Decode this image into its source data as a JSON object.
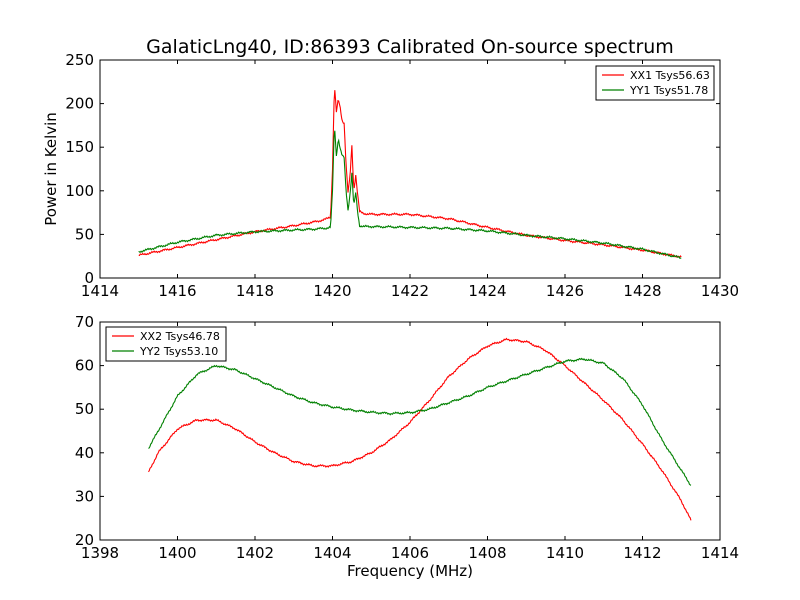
{
  "figure": {
    "title": "GalaticLng40, ID:86393 Calibrated On-source spectrum"
  },
  "chart_data": [
    {
      "type": "line",
      "xlabel": "",
      "ylabel": "Power in Kelvin",
      "xlim": [
        1414,
        1430
      ],
      "ylim": [
        0,
        250
      ],
      "xticks": [
        1414,
        1416,
        1418,
        1420,
        1422,
        1424,
        1426,
        1428,
        1430
      ],
      "yticks": [
        0,
        50,
        100,
        150,
        200,
        250
      ],
      "legend_position": "top-right",
      "grid": false,
      "series": [
        {
          "name": "XX1 Tsys56.63",
          "color": "#ff0000",
          "x": [
            1415.0,
            1416.0,
            1417.0,
            1418.0,
            1419.0,
            1419.5,
            1419.8,
            1419.95,
            1420.0,
            1420.05,
            1420.1,
            1420.15,
            1420.2,
            1420.25,
            1420.3,
            1420.35,
            1420.4,
            1420.45,
            1420.5,
            1420.55,
            1420.6,
            1420.65,
            1420.7,
            1420.8,
            1421.0,
            1422.0,
            1423.0,
            1424.0,
            1425.0,
            1426.0,
            1427.0,
            1428.0,
            1429.0
          ],
          "y": [
            26,
            35,
            44,
            53,
            60,
            64,
            67,
            70,
            125,
            222,
            190,
            205,
            195,
            180,
            178,
            130,
            98,
            115,
            152,
            100,
            118,
            95,
            76,
            74,
            73,
            73,
            68,
            58,
            49,
            43,
            38,
            32,
            24
          ]
        },
        {
          "name": "YY1 Tsys51.78",
          "color": "#008000",
          "x": [
            1415.0,
            1416.0,
            1417.0,
            1418.0,
            1419.0,
            1419.5,
            1419.8,
            1419.95,
            1420.0,
            1420.05,
            1420.1,
            1420.15,
            1420.2,
            1420.25,
            1420.3,
            1420.35,
            1420.4,
            1420.45,
            1420.5,
            1420.55,
            1420.6,
            1420.65,
            1420.7,
            1420.8,
            1421.0,
            1422.0,
            1423.0,
            1424.0,
            1425.0,
            1426.0,
            1427.0,
            1428.0,
            1429.0
          ],
          "y": [
            30,
            41,
            49,
            53,
            55,
            56,
            57,
            58,
            100,
            177,
            140,
            160,
            148,
            140,
            138,
            100,
            78,
            95,
            120,
            82,
            98,
            75,
            60,
            59,
            59,
            58,
            57,
            54,
            49,
            45,
            40,
            33,
            23
          ]
        }
      ]
    },
    {
      "type": "line",
      "xlabel": "Frequency (MHz)",
      "ylabel": "",
      "xlim": [
        1398,
        1414
      ],
      "ylim": [
        20,
        70
      ],
      "xticks": [
        1398,
        1400,
        1402,
        1404,
        1406,
        1408,
        1410,
        1412,
        1414
      ],
      "yticks": [
        20,
        30,
        40,
        50,
        60,
        70
      ],
      "legend_position": "top-left",
      "grid": false,
      "series": [
        {
          "name": "XX2 Tsys46.78",
          "color": "#ff0000",
          "x": [
            1399.25,
            1399.5,
            1400.0,
            1400.5,
            1401.0,
            1401.5,
            1402.0,
            1402.5,
            1403.0,
            1403.5,
            1404.0,
            1404.5,
            1405.0,
            1405.5,
            1406.0,
            1406.5,
            1407.0,
            1407.5,
            1408.0,
            1408.5,
            1409.0,
            1409.5,
            1410.0,
            1410.5,
            1411.0,
            1411.5,
            1412.0,
            1412.5,
            1413.0,
            1413.25
          ],
          "y": [
            35.5,
            40,
            45.5,
            47.5,
            47.5,
            45.5,
            42.5,
            40,
            38,
            37,
            37,
            38,
            40,
            43,
            47,
            52,
            57.5,
            61.5,
            64.5,
            66,
            65.5,
            63.5,
            60,
            56,
            52,
            47.5,
            42,
            36,
            29,
            24.5
          ]
        },
        {
          "name": "YY2 Tsys53.10",
          "color": "#008000",
          "x": [
            1399.25,
            1399.5,
            1400.0,
            1400.5,
            1401.0,
            1401.5,
            1402.0,
            1402.5,
            1403.0,
            1403.5,
            1404.0,
            1404.5,
            1405.0,
            1405.5,
            1406.0,
            1406.5,
            1407.0,
            1407.5,
            1408.0,
            1408.5,
            1409.0,
            1409.5,
            1410.0,
            1410.5,
            1411.0,
            1411.5,
            1412.0,
            1412.5,
            1413.0,
            1413.25
          ],
          "y": [
            41,
            45,
            53,
            58,
            60,
            59,
            57,
            55,
            53,
            51.5,
            50.5,
            49.8,
            49.3,
            49,
            49.2,
            50,
            51.5,
            53,
            55,
            56.5,
            58,
            59.5,
            61,
            61.5,
            60.5,
            57,
            51,
            43,
            36,
            32.5
          ]
        }
      ]
    }
  ]
}
